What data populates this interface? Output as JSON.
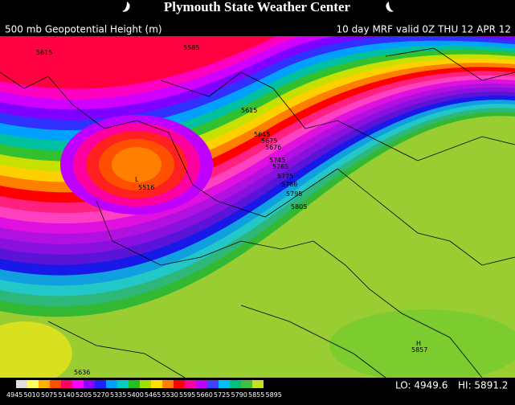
{
  "header": {
    "title": "Plymouth State Weather Center",
    "field": "500 mb Geopotential Height (m)",
    "valid": "10 day MRF valid 0Z THU 12 APR 12"
  },
  "map": {
    "contour_labels": [
      "5615",
      "5585",
      "5615",
      "5645",
      "5675",
      "5676",
      "5745",
      "5765",
      "5775",
      "5786",
      "5795",
      "5805",
      "5516",
      "5857",
      "5636"
    ],
    "low_marker": "L",
    "high_marker": "H"
  },
  "footer": {
    "scale": [
      "4945",
      "5010",
      "5075",
      "5140",
      "5205",
      "5270",
      "5335",
      "5400",
      "5465",
      "5530",
      "5595",
      "5660",
      "5725",
      "5790",
      "5855",
      "5895"
    ],
    "lo": "LO: 4949.6",
    "hi": "HI: 5891.2"
  }
}
